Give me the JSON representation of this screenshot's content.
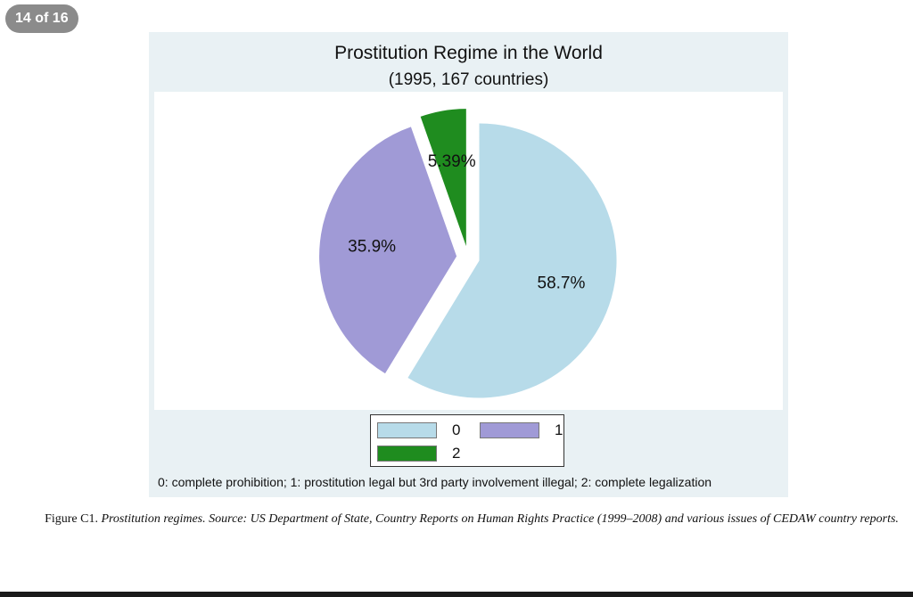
{
  "viewer": {
    "page_indicator": "14 of 16"
  },
  "chart_data": {
    "type": "pie",
    "title": "Prostitution Regime in the World",
    "subtitle": "(1995, 167 countries)",
    "categories": [
      "0",
      "1",
      "2"
    ],
    "values": [
      58.7,
      35.9,
      5.39
    ],
    "value_labels": [
      "58.7%",
      "35.9%",
      "5.39%"
    ],
    "colors": [
      "#b7dbe9",
      "#a09ad6",
      "#1f8c1f"
    ],
    "exploded": [
      true,
      true,
      true
    ],
    "start": "12 o'clock",
    "direction": "clockwise",
    "legend": {
      "placement": "bottom",
      "items": [
        {
          "label": "0",
          "color": "#b7dbe9"
        },
        {
          "label": "1",
          "color": "#a09ad6"
        },
        {
          "label": "2",
          "color": "#1f8c1f"
        }
      ]
    },
    "note": "0: complete prohibition;  1: prostitution legal but 3rd party involvement illegal;  2: complete legalization"
  },
  "caption": {
    "label": "Figure C1.",
    "text": "Prostitution regimes. Source: US Department of State, Country Reports on Human Rights Practice (1999–2008) and various issues of CEDAW country reports."
  }
}
